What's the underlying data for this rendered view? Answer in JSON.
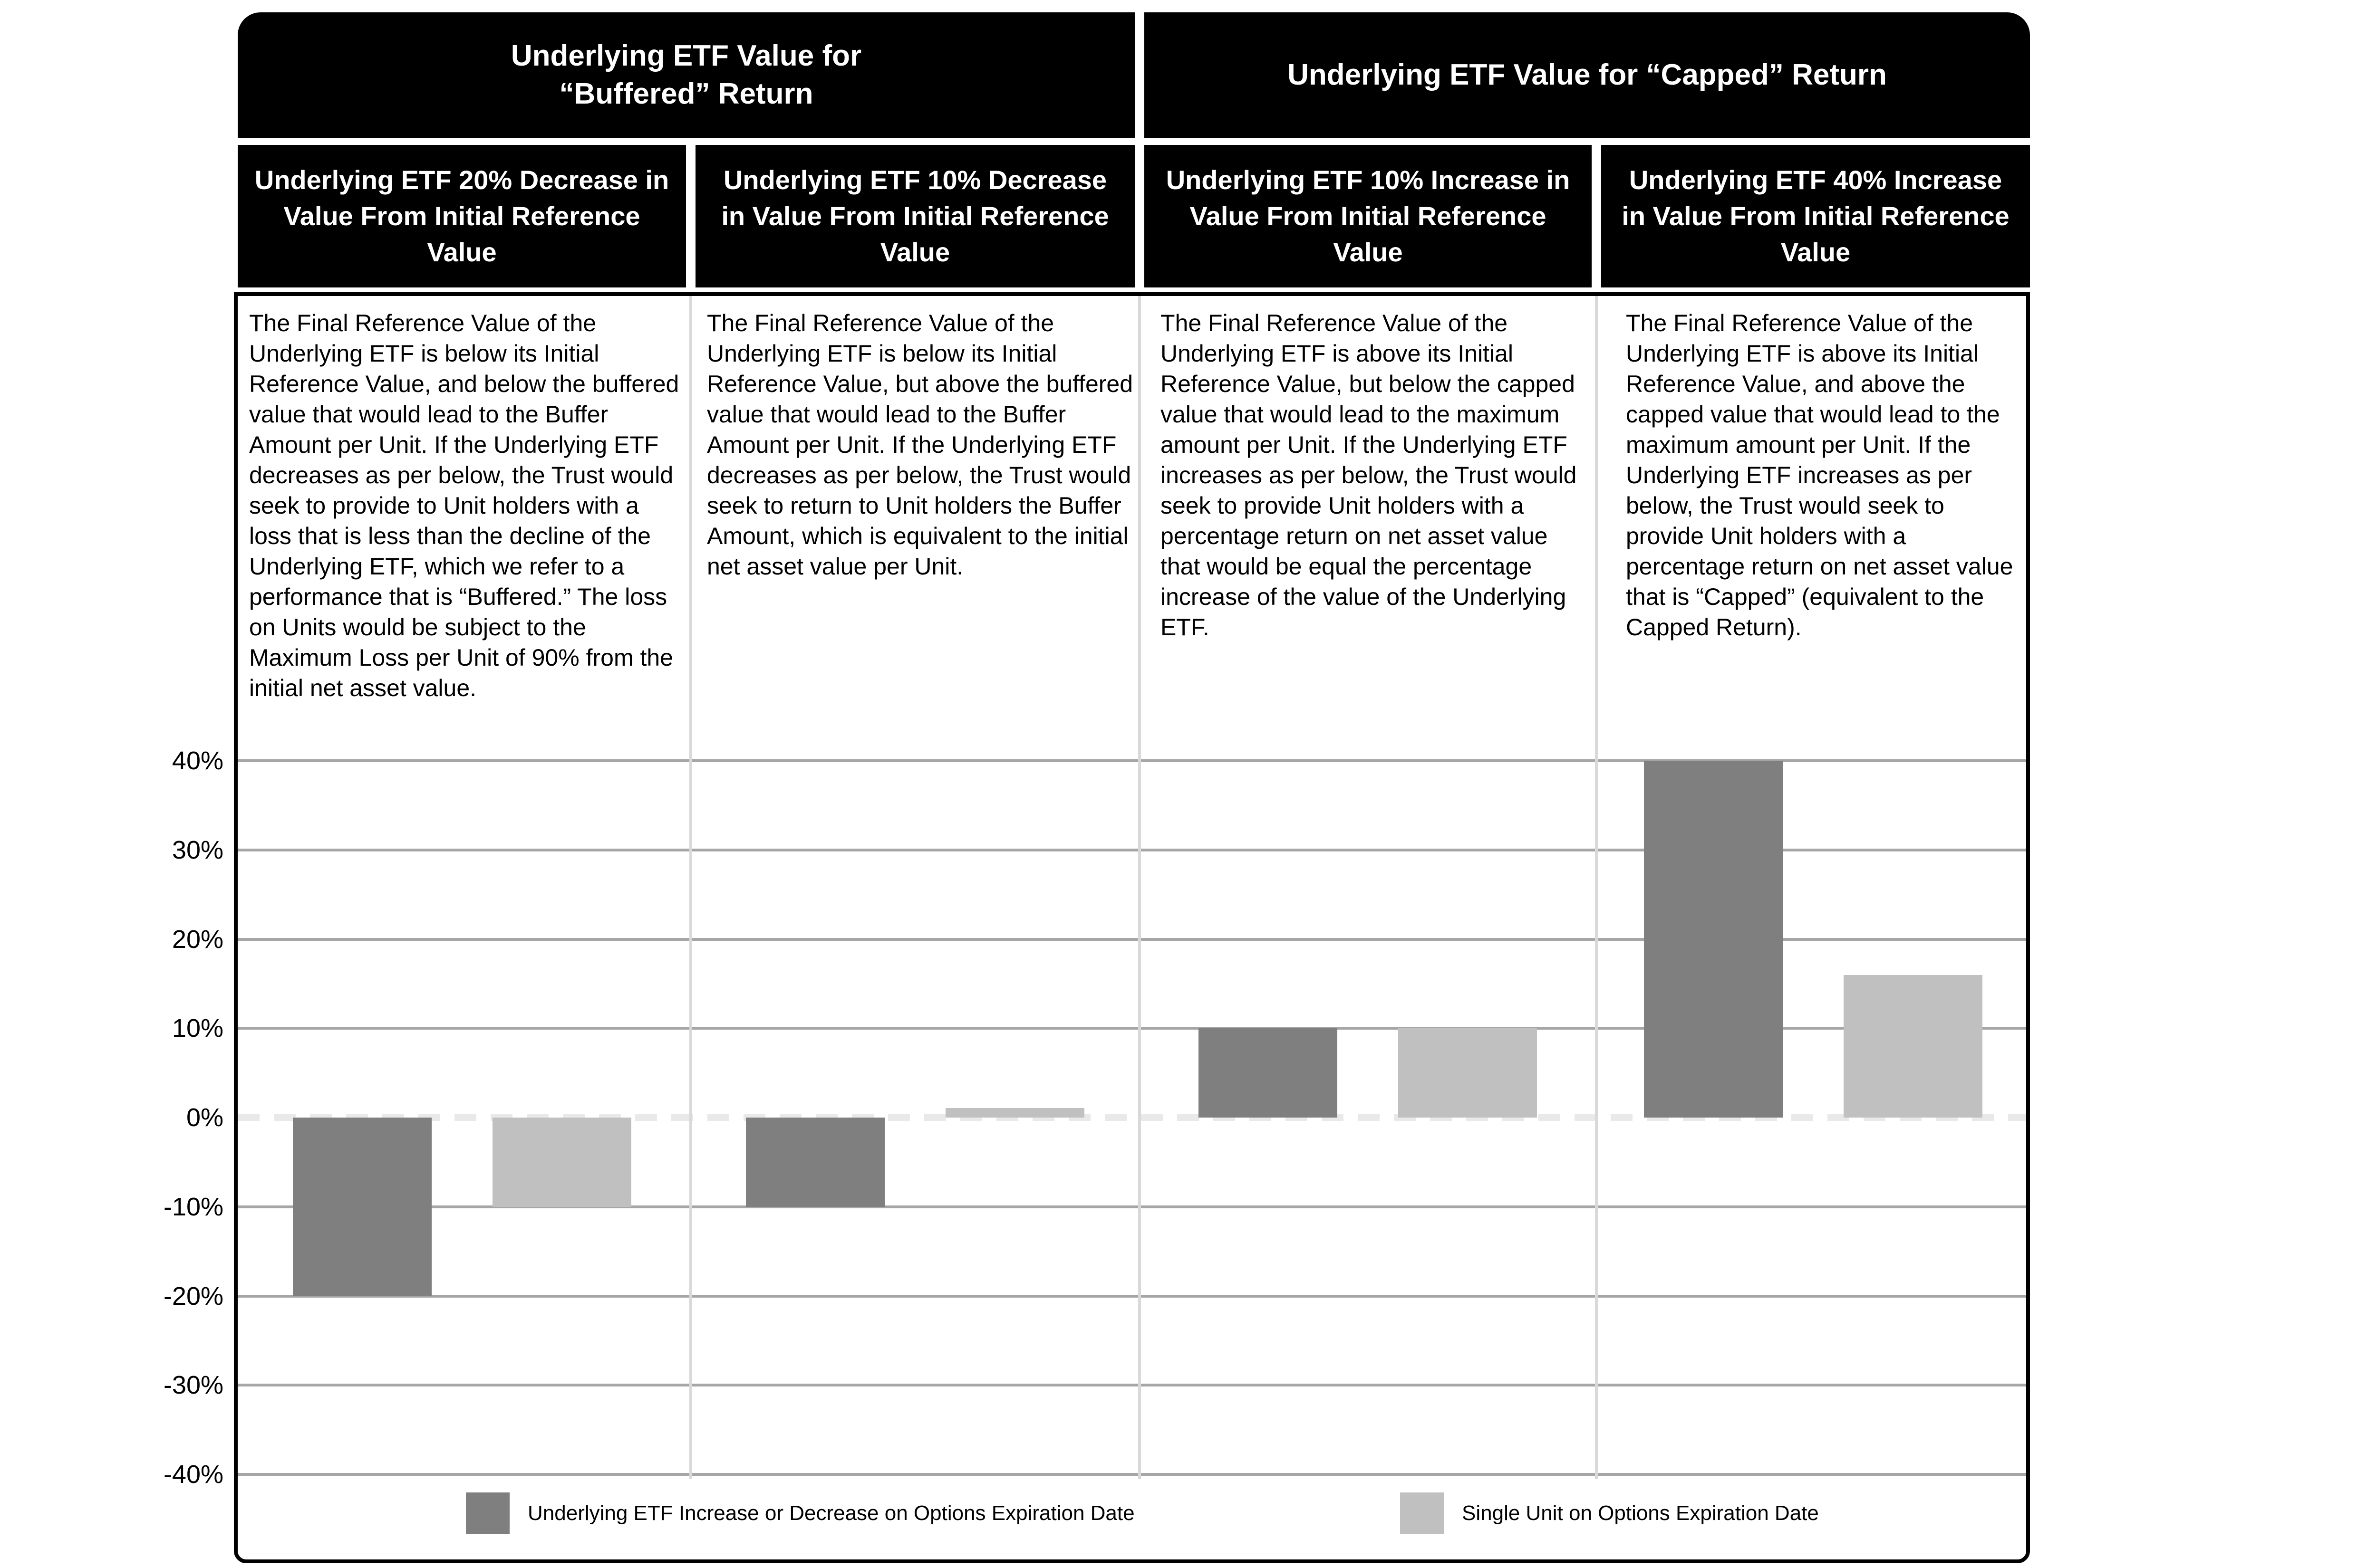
{
  "table": {
    "group_headers": [
      "Underlying ETF Value for\n“Buffered” Return",
      "Underlying ETF Value for “Capped” Return"
    ],
    "column_headers": [
      "Underlying ETF 20% Decrease in Value From Initial Reference Value",
      "Underlying ETF 10% Decrease in Value From Initial Reference Value",
      "Underlying ETF 10% Increase in Value From Initial Reference Value",
      "Underlying ETF 40% Increase in Value From Initial Reference Value"
    ],
    "cells": [
      "The Final Reference Value of the Underlying ETF is below its Initial Reference Value, and below the buffered value that would lead to the Buffer Amount per Unit. If the Underlying ETF decreases as per below, the Trust would seek to provide to Unit holders with a loss that is less than the decline of the Underlying ETF, which we refer to a performance that is “Buffered.” The loss on Units would be subject to the Maximum Loss per Unit of 90% from the initial net asset value.",
      "The Final Reference Value of the Underlying ETF is below its Initial Reference Value, but above the buffered value that would lead to the Buffer Amount per Unit. If the Underlying ETF decreases as per below, the Trust would seek to return to Unit holders the Buffer Amount, which is equivalent to the initial net asset value per Unit.",
      "The Final Reference Value of the Underlying ETF is above its Initial Reference Value, but below the capped value that would lead to the maximum amount per Unit. If the Underlying ETF increases as per below, the Trust would seek to provide Unit holders with a percentage return on net asset value that would be equal the percentage increase of the value of the Underlying ETF.",
      "The Final Reference Value of the Underlying ETF is above its Initial Reference Value, and above the capped value that would lead to the maximum amount per Unit. If the Underlying ETF increases as per below, the Trust would seek to provide Unit holders with a percentage return on net asset value that is “Capped” (equivalent to the Capped Return)."
    ]
  },
  "chart_data": {
    "type": "bar",
    "categories": [
      "Underlying ETF 20% Decrease in Value From Initial Reference Value",
      "Underlying ETF 10% Decrease in Value From Initial Reference Value",
      "Underlying ETF 10% Increase in Value From Initial Reference Value",
      "Underlying ETF 40% Increase in Value From Initial Reference Value"
    ],
    "series": [
      {
        "name": "Underlying ETF Increase or Decrease on Options Expiration Date",
        "color": "#7f7f7f",
        "values": [
          -20,
          -10,
          10,
          40
        ]
      },
      {
        "name": "Single Unit on Options Expiration Date",
        "color": "#c0c0c0",
        "values": [
          -10,
          1,
          10,
          16
        ]
      }
    ],
    "title": "",
    "xlabel": "",
    "ylabel": "",
    "ylim": [
      -40,
      40
    ],
    "ytick_values": [
      40,
      30,
      20,
      10,
      0,
      -10,
      -20,
      -30,
      -40
    ],
    "ytick_labels": [
      "40%",
      "30%",
      "20%",
      "10%",
      "0%",
      "-10%",
      "-20%",
      "-30%",
      "-40%"
    ],
    "grid": "horizontal solid gray, zero line dashed light gray",
    "legend_position": "bottom inside frame"
  },
  "colors": {
    "header_bg": "#000000",
    "header_text": "#ffffff",
    "bar_dark": "#7f7f7f",
    "bar_light": "#c0c0c0",
    "gridline": "#a6a6a6",
    "zero_line": "#e9e9e9",
    "column_separator": "#d9d9d9",
    "frame_border": "#000000"
  }
}
